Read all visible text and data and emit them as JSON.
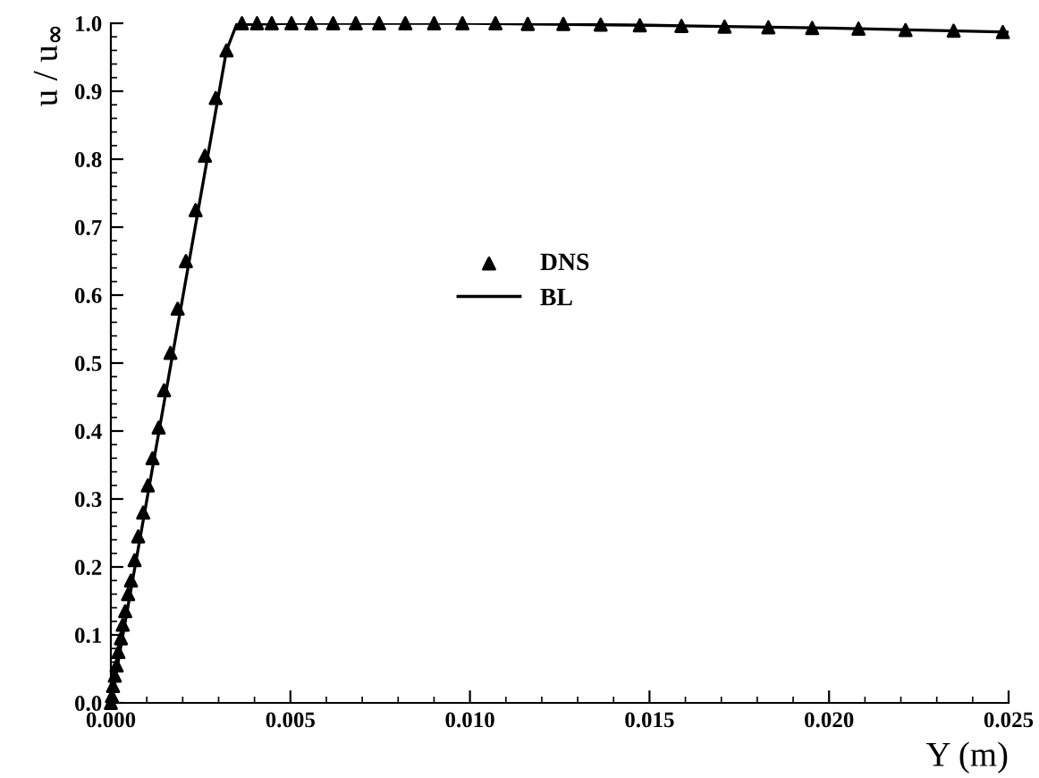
{
  "chart_data": {
    "type": "line",
    "xlabel": "Y (m)",
    "ylabel": "u / u$_{∞}$",
    "xlim": [
      0,
      0.025
    ],
    "ylim": [
      0,
      1.0
    ],
    "xticks": [
      {
        "value": 0,
        "label": "0.000"
      },
      {
        "value": 0.005,
        "label": "0.005"
      },
      {
        "value": 0.01,
        "label": "0.010"
      },
      {
        "value": 0.015,
        "label": "0.015"
      },
      {
        "value": 0.02,
        "label": "0.020"
      },
      {
        "value": 0.025,
        "label": "0.025"
      }
    ],
    "yticks": [
      {
        "value": 0,
        "label": "0.0"
      },
      {
        "value": 0.1,
        "label": "0.1"
      },
      {
        "value": 0.2,
        "label": "0.2"
      },
      {
        "value": 0.3,
        "label": "0.3"
      },
      {
        "value": 0.4,
        "label": "0.4"
      },
      {
        "value": 0.5,
        "label": "0.5"
      },
      {
        "value": 0.6,
        "label": "0.6"
      },
      {
        "value": 0.7,
        "label": "0.7"
      },
      {
        "value": 0.8,
        "label": "0.8"
      },
      {
        "value": 0.9,
        "label": "0.9"
      },
      {
        "value": 1.0,
        "label": "1.0"
      }
    ],
    "grid": false,
    "legend": "center",
    "series": [
      {
        "name": "DNS",
        "type": "scatter",
        "marker": "triangle",
        "color": "#000000",
        "x": [
          0,
          3e-05,
          6e-05,
          0.00011,
          0.00016,
          0.00021,
          0.00028,
          0.00033,
          0.0004,
          0.00048,
          0.00056,
          0.00066,
          0.00076,
          0.0009,
          0.00103,
          0.00116,
          0.00133,
          0.00148,
          0.00166,
          0.00186,
          0.00209,
          0.00236,
          0.00262,
          0.00292,
          0.00322,
          0.00365,
          0.00407,
          0.00448,
          0.00503,
          0.00558,
          0.00619,
          0.00682,
          0.00747,
          0.0082,
          0.009,
          0.00979,
          0.01071,
          0.01161,
          0.0126,
          0.01364,
          0.01473,
          0.01589,
          0.01709,
          0.01831,
          0.01953,
          0.02082,
          0.02213,
          0.02347,
          0.02484
        ],
        "values": [
          0,
          0.01,
          0.025,
          0.04,
          0.055,
          0.075,
          0.095,
          0.115,
          0.135,
          0.16,
          0.18,
          0.21,
          0.245,
          0.28,
          0.32,
          0.36,
          0.405,
          0.46,
          0.515,
          0.58,
          0.65,
          0.725,
          0.805,
          0.89,
          0.96,
          1.0,
          1.0,
          1.0,
          1.0,
          1.0,
          1.0,
          1.0,
          1.0,
          1.0,
          1.0,
          1.0,
          1.0,
          0.999,
          0.999,
          0.998,
          0.997,
          0.996,
          0.995,
          0.994,
          0.993,
          0.992,
          0.99,
          0.989,
          0.987
        ]
      },
      {
        "name": "BL",
        "marker": "none",
        "line_style": "solid",
        "color": "#000000",
        "x": [
          0,
          0.00322,
          0.0035,
          0.005,
          0.01,
          0.015,
          0.02,
          0.025
        ],
        "values": [
          0,
          0.96,
          0.998,
          1.0,
          1.0,
          0.997,
          0.993,
          0.987
        ]
      }
    ]
  }
}
